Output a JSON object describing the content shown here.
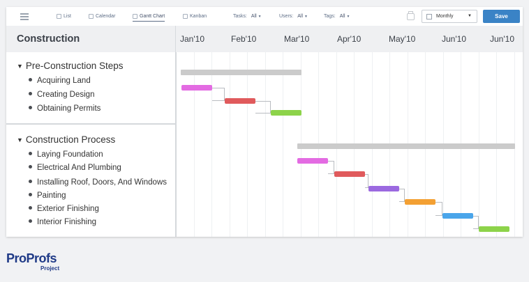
{
  "toolbar": {
    "views": [
      {
        "label": "List",
        "icon": "list-icon"
      },
      {
        "label": "Calendar",
        "icon": "calendar-icon"
      },
      {
        "label": "Gantt Chart",
        "icon": "gantt-icon"
      },
      {
        "label": "Kanban",
        "icon": "kanban-icon"
      }
    ],
    "active_view": "Gantt Chart",
    "filters": [
      {
        "label": "Tasks:",
        "value": "All"
      },
      {
        "label": "Users:",
        "value": "All"
      },
      {
        "label": "Tags:",
        "value": "All"
      }
    ],
    "scale_select": "Monthly",
    "save_label": "Save"
  },
  "gantt": {
    "project_title": "Construction",
    "months": [
      "Jan'10",
      "Feb'10",
      "Mar'10",
      "Apr'10",
      "May'10",
      "Jun'10",
      "Jun'10"
    ],
    "groups": [
      {
        "name": "Pre-Construction Steps",
        "tasks": [
          {
            "name": "Acquiring Land",
            "color": "#e36be2"
          },
          {
            "name": "Creating Design",
            "color": "#e05a5c"
          },
          {
            "name": "Obtaining Permits",
            "color": "#8dd34a"
          }
        ]
      },
      {
        "name": "Construction Process",
        "tasks": [
          {
            "name": "Laying Foundation",
            "color": "#e36be2"
          },
          {
            "name": "Electrical And Plumbing",
            "color": "#e05a5c"
          },
          {
            "name": "Installing Roof, Doors, And Windows",
            "color": "#9b69e0"
          },
          {
            "name": "Painting",
            "color": "#f3a033"
          },
          {
            "name": "Exterior Finishing",
            "color": "#4aa5ea"
          },
          {
            "name": "Interior Finishing",
            "color": "#8dd34a"
          }
        ]
      }
    ]
  },
  "branding": {
    "logo_text": "ProProfs",
    "logo_sub": "Project"
  }
}
